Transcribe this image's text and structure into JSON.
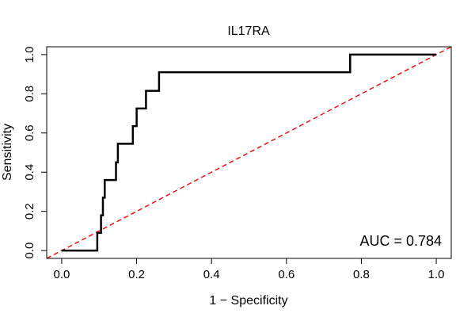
{
  "chart_data": {
    "type": "line",
    "title": "IL17RA",
    "xlabel": "1 − Specificity",
    "ylabel": "Sensitivity",
    "xlim": [
      -0.04,
      1.04
    ],
    "ylim": [
      -0.04,
      1.04
    ],
    "x_ticks": [
      0.0,
      0.2,
      0.4,
      0.6,
      0.8,
      1.0
    ],
    "x_tick_labels": [
      "0.0",
      "0.2",
      "0.4",
      "0.6",
      "0.8",
      "1.0"
    ],
    "y_ticks": [
      0.0,
      0.2,
      0.4,
      0.6,
      0.8,
      1.0
    ],
    "y_tick_labels": [
      "0.0",
      "0.2",
      "0.4",
      "0.6",
      "0.8",
      "1.0"
    ],
    "grid": false,
    "series": [
      {
        "name": "ROC curve",
        "color": "#000000",
        "style": "step",
        "x": [
          0.0,
          0.095,
          0.095,
          0.105,
          0.105,
          0.11,
          0.11,
          0.115,
          0.115,
          0.145,
          0.145,
          0.15,
          0.15,
          0.19,
          0.19,
          0.2,
          0.2,
          0.225,
          0.225,
          0.26,
          0.26,
          0.77,
          0.77,
          1.0
        ],
        "y": [
          0.0,
          0.0,
          0.09,
          0.09,
          0.18,
          0.18,
          0.27,
          0.27,
          0.36,
          0.36,
          0.45,
          0.45,
          0.545,
          0.545,
          0.635,
          0.635,
          0.725,
          0.725,
          0.815,
          0.815,
          0.91,
          0.91,
          1.0,
          1.0
        ]
      },
      {
        "name": "Reference diagonal",
        "color": "#e8141a",
        "style": "dashed",
        "x": [
          -0.04,
          1.04
        ],
        "y": [
          -0.04,
          1.04
        ]
      }
    ],
    "annotations": [
      {
        "text": "AUC = 0.784",
        "position": "bottom-right"
      }
    ]
  }
}
